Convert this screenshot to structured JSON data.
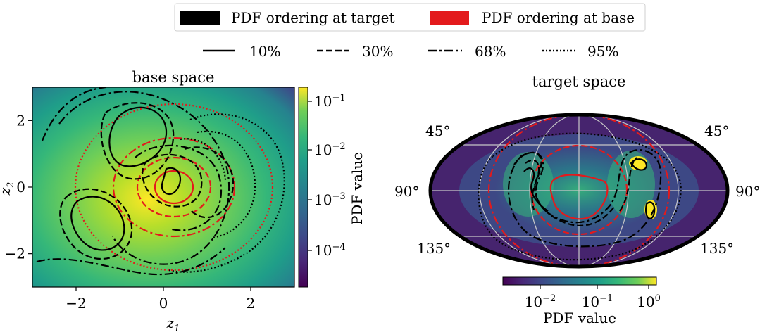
{
  "legend": {
    "colors": [
      {
        "label": "PDF ordering at target",
        "color": "#000000"
      },
      {
        "label": "PDF ordering at base",
        "color": "#e31a1c"
      }
    ],
    "levels": [
      {
        "label": "10%",
        "dash": "solid"
      },
      {
        "label": "30%",
        "dash": "dashed"
      },
      {
        "label": "68%",
        "dash": "dashdot"
      },
      {
        "label": "95%",
        "dash": "dotted"
      }
    ]
  },
  "chart_data": [
    {
      "type": "heatmap",
      "title": "base space",
      "xlabel": "z1",
      "ylabel": "z2",
      "xlim": [
        -3,
        3
      ],
      "ylim": [
        -3,
        3
      ],
      "xticks": [
        -2,
        0,
        2
      ],
      "yticks": [
        -2,
        0,
        2
      ],
      "colormap": "viridis",
      "colorbar": {
        "label": "PDF value",
        "scale": "log",
        "ticks": [
          "10^-1",
          "10^-2",
          "10^-3",
          "10^-4"
        ]
      },
      "contours": {
        "red_levels": [
          "10%",
          "30%",
          "68%",
          "95%"
        ],
        "black_levels": [
          "10%",
          "30%",
          "68%",
          "95%"
        ]
      }
    },
    {
      "type": "heatmap",
      "title": "target space",
      "projection": "mollweide",
      "latitude_labels": [
        "45°",
        "45°",
        "90°",
        "90°",
        "135°",
        "135°"
      ],
      "colormap": "viridis",
      "colorbar": {
        "label": "PDF value",
        "scale": "log",
        "ticks": [
          "10^-2",
          "10^-1",
          "10^0"
        ]
      },
      "contours": {
        "red_levels": [
          "10%",
          "30%",
          "68%",
          "95%"
        ],
        "black_levels": [
          "10%",
          "30%",
          "68%",
          "95%"
        ]
      }
    }
  ]
}
